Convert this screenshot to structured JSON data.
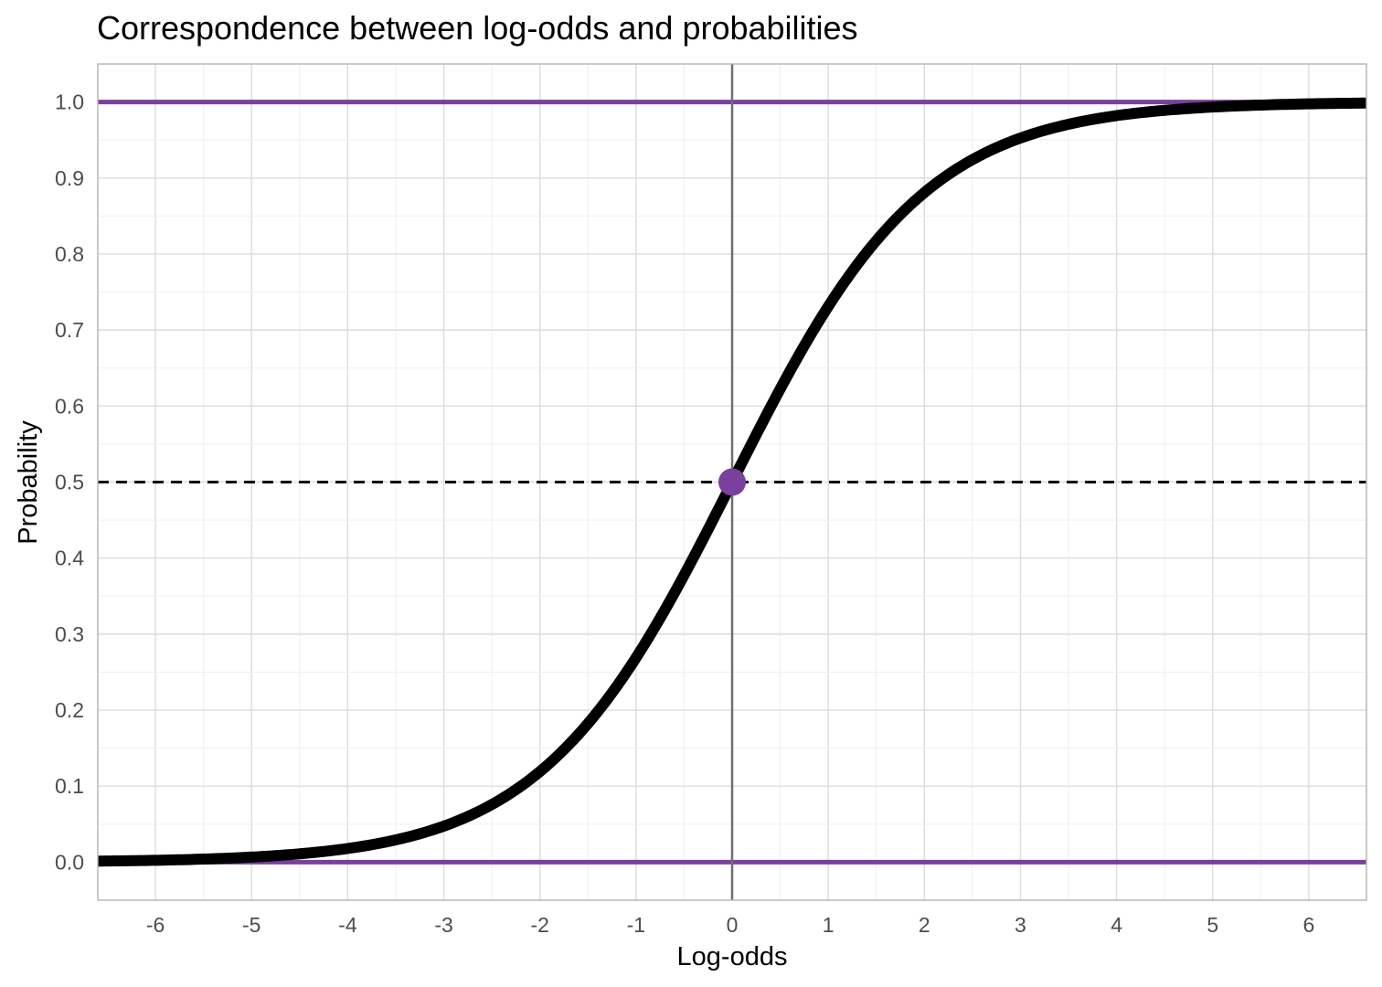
{
  "chart_data": {
    "type": "line",
    "title": "Correspondence between log-odds and probabilities",
    "xlabel": "Log-odds",
    "ylabel": "Probability",
    "xlim": [
      -6.6,
      6.6
    ],
    "ylim": [
      -0.05,
      1.05
    ],
    "x_ticks": [
      -6,
      -5,
      -4,
      -3,
      -2,
      -1,
      0,
      1,
      2,
      3,
      4,
      5,
      6
    ],
    "x_tick_labels": [
      "-6",
      "-5",
      "-4",
      "-3",
      "-2",
      "-1",
      "0",
      "1",
      "2",
      "3",
      "4",
      "5",
      "6"
    ],
    "y_ticks": [
      0,
      0.1,
      0.2,
      0.3,
      0.4,
      0.5,
      0.6,
      0.7,
      0.8,
      0.9,
      1.0
    ],
    "y_tick_labels": [
      "0.0",
      "0.1",
      "0.2",
      "0.3",
      "0.4",
      "0.5",
      "0.6",
      "0.7",
      "0.8",
      "0.9",
      "1.0"
    ],
    "grid": true,
    "series": [
      {
        "function": "logistic",
        "color": "#000000",
        "x": [
          -6.6,
          -6,
          -5,
          -4,
          -3,
          -2.5,
          -2,
          -1.5,
          -1,
          -0.5,
          0,
          0.5,
          1,
          1.5,
          2,
          2.5,
          3,
          4,
          5,
          6,
          6.6
        ],
        "y": [
          0.0014,
          0.0025,
          0.0067,
          0.018,
          0.047,
          0.076,
          0.119,
          0.182,
          0.269,
          0.378,
          0.5,
          0.622,
          0.731,
          0.818,
          0.881,
          0.924,
          0.953,
          0.982,
          0.9933,
          0.9975,
          0.9986
        ]
      }
    ],
    "reference_lines": [
      {
        "orientation": "horizontal",
        "y": 1.0,
        "style": "solid",
        "color": "#7b3f9e"
      },
      {
        "orientation": "horizontal",
        "y": 0.0,
        "style": "solid",
        "color": "#7b3f9e"
      },
      {
        "orientation": "horizontal",
        "y": 0.5,
        "style": "dashed",
        "color": "#000000"
      },
      {
        "orientation": "vertical",
        "x": 0,
        "style": "solid",
        "color": "#6e6e6e"
      }
    ],
    "points": [
      {
        "x": 0,
        "y": 0.5,
        "color": "#7b3f9e"
      }
    ]
  }
}
